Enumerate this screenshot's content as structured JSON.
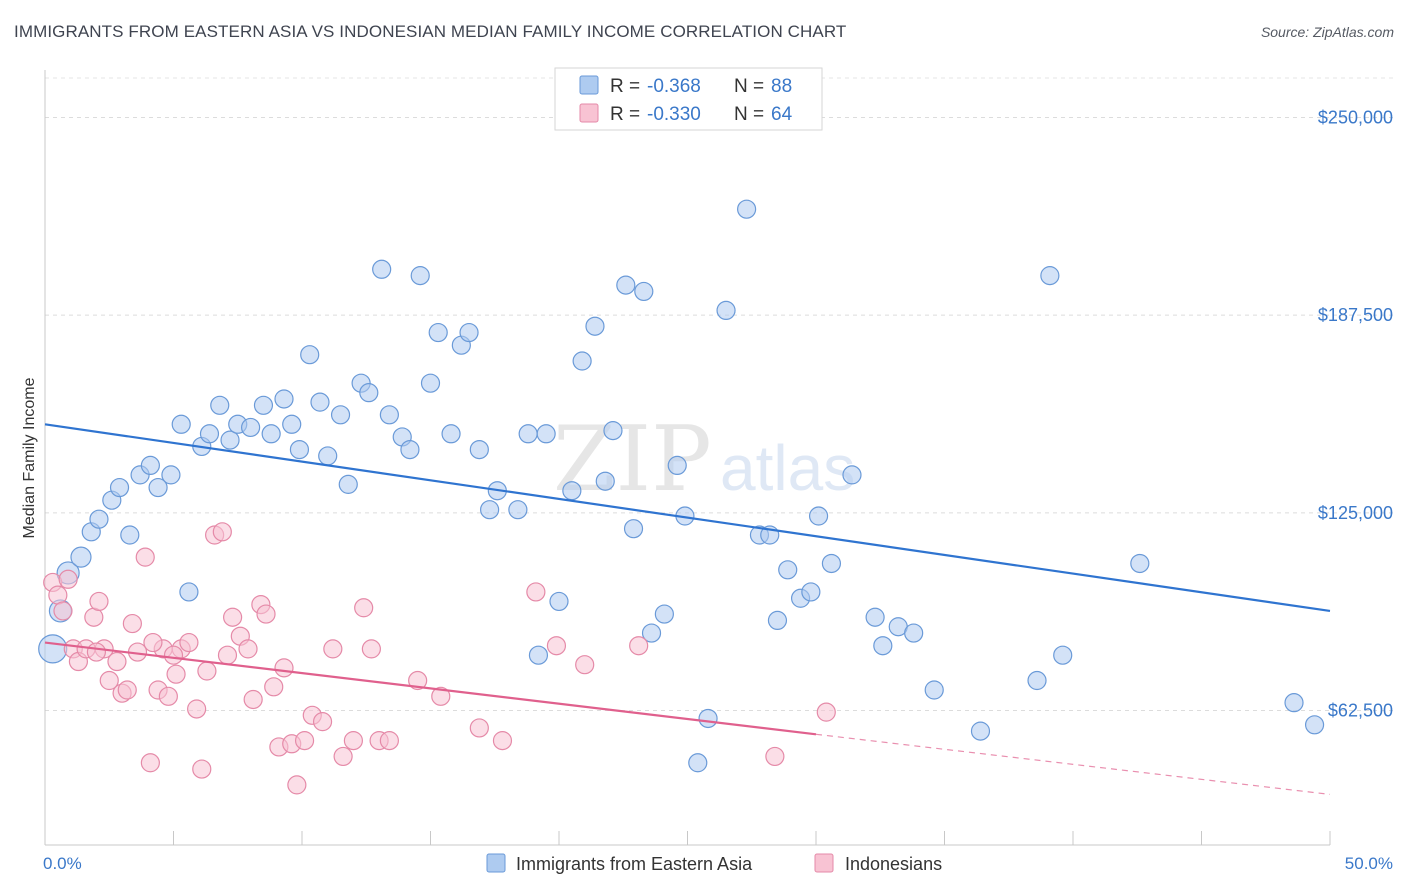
{
  "title": "IMMIGRANTS FROM EASTERN ASIA VS INDONESIAN MEDIAN FAMILY INCOME CORRELATION CHART",
  "source": "Source: ZipAtlas.com",
  "watermark": {
    "zip": "ZIP",
    "atlas": "atlas"
  },
  "legend_box": {
    "rows": [
      {
        "r_label": "R = ",
        "r_value": "-0.368",
        "n_label": "N = ",
        "n_value": "88",
        "color": "#aecbf0",
        "stroke": "#6a9ad8"
      },
      {
        "r_label": "R = ",
        "r_value": "-0.330",
        "n_label": "N = ",
        "n_value": "64",
        "color": "#f8c3d3",
        "stroke": "#e58aa8"
      }
    ]
  },
  "chart_data": {
    "type": "scatter",
    "ylabel": "Median Family Income",
    "x_tick_labels": [
      "0.0%",
      "50.0%"
    ],
    "xlim": [
      0,
      50
    ],
    "ylim": [
      20000,
      265000
    ],
    "y_ticks": [
      {
        "value": 62500,
        "label": "$62,500"
      },
      {
        "value": 125000,
        "label": "$125,000"
      },
      {
        "value": 187500,
        "label": "$187,500"
      },
      {
        "value": 250000,
        "label": "$250,000"
      }
    ],
    "colors": {
      "blue": "#3a7bd5",
      "pink": "#e0608d",
      "tick_text": "#3a78c9"
    },
    "series": [
      {
        "name": "Immigrants from Eastern Asia",
        "color": "#aecbf0",
        "stroke": "#6a9ad8",
        "trend": {
          "x0": 0,
          "y0": 153000,
          "x1": 50,
          "y1": 94000,
          "color": "#2f74d0"
        },
        "points": [
          [
            0.3,
            82000,
            14
          ],
          [
            0.6,
            94000,
            11
          ],
          [
            0.9,
            106000,
            11
          ],
          [
            1.4,
            111000,
            10
          ],
          [
            1.8,
            119000,
            9
          ],
          [
            2.1,
            123000,
            9
          ],
          [
            2.6,
            129000,
            9
          ],
          [
            2.9,
            133000,
            9
          ],
          [
            3.3,
            118000,
            9
          ],
          [
            3.7,
            137000,
            9
          ],
          [
            4.1,
            140000,
            9
          ],
          [
            4.4,
            133000,
            9
          ],
          [
            4.9,
            137000,
            9
          ],
          [
            5.3,
            153000,
            9
          ],
          [
            5.6,
            100000,
            9
          ],
          [
            6.1,
            146000,
            9
          ],
          [
            6.4,
            150000,
            9
          ],
          [
            6.8,
            159000,
            9
          ],
          [
            7.2,
            148000,
            9
          ],
          [
            7.5,
            153000,
            9
          ],
          [
            8.0,
            152000,
            9
          ],
          [
            8.5,
            159000,
            9
          ],
          [
            8.8,
            150000,
            9
          ],
          [
            9.3,
            161000,
            9
          ],
          [
            9.6,
            153000,
            9
          ],
          [
            9.9,
            145000,
            9
          ],
          [
            10.3,
            175000,
            9
          ],
          [
            10.7,
            160000,
            9
          ],
          [
            11.0,
            143000,
            9
          ],
          [
            11.5,
            156000,
            9
          ],
          [
            11.8,
            134000,
            9
          ],
          [
            12.3,
            166000,
            9
          ],
          [
            12.6,
            163000,
            9
          ],
          [
            13.1,
            202000,
            9
          ],
          [
            13.4,
            156000,
            9
          ],
          [
            13.9,
            149000,
            9
          ],
          [
            14.2,
            145000,
            9
          ],
          [
            14.6,
            200000,
            9
          ],
          [
            15.0,
            166000,
            9
          ],
          [
            15.3,
            182000,
            9
          ],
          [
            15.8,
            150000,
            9
          ],
          [
            16.2,
            178000,
            9
          ],
          [
            16.5,
            182000,
            9
          ],
          [
            16.9,
            145000,
            9
          ],
          [
            17.3,
            126000,
            9
          ],
          [
            17.6,
            132000,
            9
          ],
          [
            18.4,
            126000,
            9
          ],
          [
            18.8,
            150000,
            9
          ],
          [
            19.2,
            80000,
            9
          ],
          [
            19.5,
            150000,
            9
          ],
          [
            20.0,
            97000,
            9
          ],
          [
            20.5,
            132000,
            9
          ],
          [
            20.9,
            173000,
            9
          ],
          [
            21.4,
            184000,
            9
          ],
          [
            21.8,
            135000,
            9
          ],
          [
            22.1,
            151000,
            9
          ],
          [
            22.6,
            197000,
            9
          ],
          [
            22.9,
            120000,
            9
          ],
          [
            23.3,
            195000,
            9
          ],
          [
            23.6,
            87000,
            9
          ],
          [
            24.1,
            93000,
            9
          ],
          [
            24.6,
            140000,
            9
          ],
          [
            24.9,
            124000,
            9
          ],
          [
            25.8,
            60000,
            9
          ],
          [
            25.4,
            46000,
            9
          ],
          [
            26.5,
            189000,
            9
          ],
          [
            27.3,
            221000,
            9
          ],
          [
            27.8,
            118000,
            9
          ],
          [
            28.2,
            118000,
            9
          ],
          [
            28.5,
            91000,
            9
          ],
          [
            28.9,
            107000,
            9
          ],
          [
            29.4,
            98000,
            9
          ],
          [
            29.8,
            100000,
            9
          ],
          [
            30.1,
            124000,
            9
          ],
          [
            30.6,
            109000,
            9
          ],
          [
            31.4,
            137000,
            9
          ],
          [
            32.3,
            92000,
            9
          ],
          [
            32.6,
            83000,
            9
          ],
          [
            33.2,
            89000,
            9
          ],
          [
            33.8,
            87000,
            9
          ],
          [
            34.6,
            69000,
            9
          ],
          [
            36.4,
            56000,
            9
          ],
          [
            38.6,
            72000,
            9
          ],
          [
            39.1,
            200000,
            9
          ],
          [
            39.6,
            80000,
            9
          ],
          [
            42.6,
            109000,
            9
          ],
          [
            48.6,
            65000,
            9
          ],
          [
            49.4,
            58000,
            9
          ]
        ]
      },
      {
        "name": "Indonesians",
        "color": "#f8c3d3",
        "stroke": "#e58aa8",
        "trend": {
          "x0": 0,
          "y0": 84000,
          "x1": 30,
          "y1": 55000,
          "color": "#e0608d"
        },
        "trend_ext": {
          "x0": 30,
          "y0": 55000,
          "x1": 50,
          "y1": 36000
        },
        "points": [
          [
            0.3,
            103000,
            9
          ],
          [
            0.5,
            99000,
            9
          ],
          [
            0.7,
            94000,
            9
          ],
          [
            0.9,
            104000,
            9
          ],
          [
            1.1,
            82000,
            9
          ],
          [
            1.3,
            78000,
            9
          ],
          [
            1.6,
            82000,
            9
          ],
          [
            1.9,
            92000,
            9
          ],
          [
            2.1,
            97000,
            9
          ],
          [
            2.3,
            82000,
            9
          ],
          [
            2.5,
            72000,
            9
          ],
          [
            2.8,
            78000,
            9
          ],
          [
            3.0,
            68000,
            9
          ],
          [
            3.2,
            69000,
            9
          ],
          [
            3.4,
            90000,
            9
          ],
          [
            3.6,
            81000,
            9
          ],
          [
            3.9,
            111000,
            9
          ],
          [
            4.1,
            46000,
            9
          ],
          [
            4.4,
            69000,
            9
          ],
          [
            4.6,
            82000,
            9
          ],
          [
            4.8,
            67000,
            9
          ],
          [
            5.1,
            74000,
            9
          ],
          [
            5.3,
            82000,
            9
          ],
          [
            5.6,
            84000,
            9
          ],
          [
            5.9,
            63000,
            9
          ],
          [
            6.1,
            44000,
            9
          ],
          [
            6.3,
            75000,
            9
          ],
          [
            6.6,
            118000,
            9
          ],
          [
            6.9,
            119000,
            9
          ],
          [
            7.1,
            80000,
            9
          ],
          [
            7.3,
            92000,
            9
          ],
          [
            7.6,
            86000,
            9
          ],
          [
            7.9,
            82000,
            9
          ],
          [
            8.1,
            66000,
            9
          ],
          [
            8.4,
            96000,
            9
          ],
          [
            8.6,
            93000,
            9
          ],
          [
            8.9,
            70000,
            9
          ],
          [
            9.1,
            51000,
            9
          ],
          [
            9.3,
            76000,
            9
          ],
          [
            9.6,
            52000,
            9
          ],
          [
            9.8,
            39000,
            9
          ],
          [
            10.1,
            53000,
            9
          ],
          [
            10.4,
            61000,
            9
          ],
          [
            10.8,
            59000,
            9
          ],
          [
            11.2,
            82000,
            9
          ],
          [
            11.6,
            48000,
            9
          ],
          [
            12.0,
            53000,
            9
          ],
          [
            12.4,
            95000,
            9
          ],
          [
            12.7,
            82000,
            9
          ],
          [
            13.0,
            53000,
            9
          ],
          [
            13.4,
            53000,
            9
          ],
          [
            14.5,
            72000,
            9
          ],
          [
            15.4,
            67000,
            9
          ],
          [
            16.9,
            57000,
            9
          ],
          [
            17.8,
            53000,
            9
          ],
          [
            19.1,
            100000,
            9
          ],
          [
            19.9,
            83000,
            9
          ],
          [
            21.0,
            77000,
            9
          ],
          [
            23.1,
            83000,
            9
          ],
          [
            28.4,
            48000,
            9
          ],
          [
            30.4,
            62000,
            9
          ],
          [
            2.0,
            81000,
            9
          ],
          [
            5.0,
            80000,
            9
          ],
          [
            4.2,
            84000,
            9
          ]
        ]
      }
    ]
  }
}
